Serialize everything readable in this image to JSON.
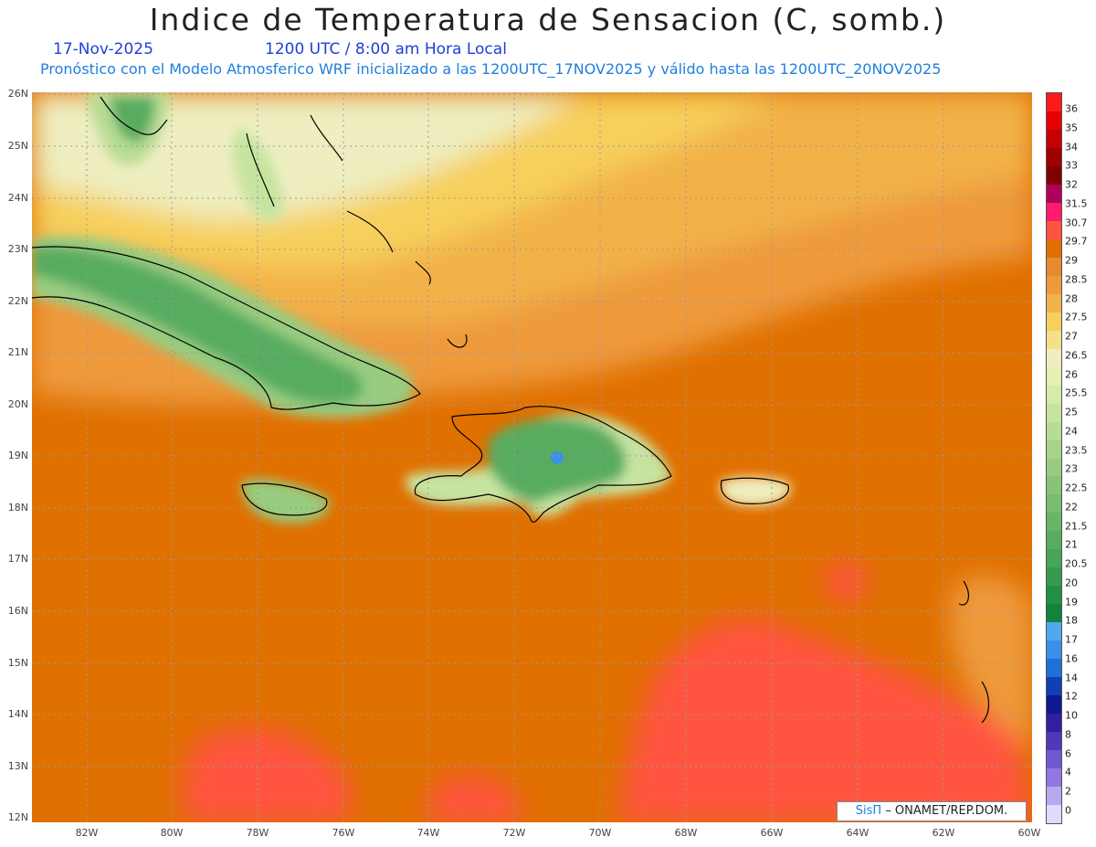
{
  "header": {
    "title": "Indice de Temperatura de Sensacion (C, somb.)",
    "date": "17-Nov-2025",
    "time": "1200 UTC / 8:00 am Hora Local",
    "description": "Pronóstico con el Modelo Atmosferico WRF inicializado a las 1200UTC_17NOV2025 y válido hasta las  1200UTC_20NOV2025"
  },
  "axes": {
    "lat_labels": [
      "26N",
      "25N",
      "24N",
      "23N",
      "22N",
      "21N",
      "20N",
      "19N",
      "18N",
      "17N",
      "16N",
      "15N",
      "14N",
      "13N",
      "12N"
    ],
    "lon_labels": [
      "82W",
      "80W",
      "78W",
      "76W",
      "74W",
      "72W",
      "70W",
      "68W",
      "66W",
      "64W",
      "62W",
      "60W"
    ]
  },
  "legend": {
    "labels": [
      "36",
      "35",
      "34",
      "33",
      "32",
      "31.5",
      "30.7",
      "29.7",
      "29",
      "28.5",
      "28",
      "27.5",
      "27",
      "26.5",
      "26",
      "25.5",
      "25",
      "24",
      "23.5",
      "23",
      "22.5",
      "22",
      "21.5",
      "21",
      "20.5",
      "20",
      "19",
      "18",
      "17",
      "16",
      "14",
      "12",
      "10",
      "8",
      "6",
      "4",
      "2",
      "0"
    ],
    "colors": [
      "#ff1a1a",
      "#e60000",
      "#c40000",
      "#a00000",
      "#800000",
      "#b0005a",
      "#ff1a6e",
      "#ff5540",
      "#e07000",
      "#e58a30",
      "#ee9a3c",
      "#f2b24a",
      "#f6cf5c",
      "#f5e08a",
      "#eeeec0",
      "#e6f0b0",
      "#d4ebaa",
      "#c6e4a0",
      "#b8dc94",
      "#a8d48a",
      "#98cc80",
      "#88c478",
      "#78bc70",
      "#68b468",
      "#58ac60",
      "#48a458",
      "#369a4e",
      "#209046",
      "#10843c",
      "#50a8f0",
      "#3a90e8",
      "#1f70d8",
      "#1040b8",
      "#101890",
      "#3020a0",
      "#5038b8",
      "#7058d0",
      "#9078e0",
      "#b8a8f0",
      "#dcdcff"
    ]
  },
  "credit": {
    "brand": "SisΠ",
    "text": " – ONAMET/REP.DOM."
  }
}
